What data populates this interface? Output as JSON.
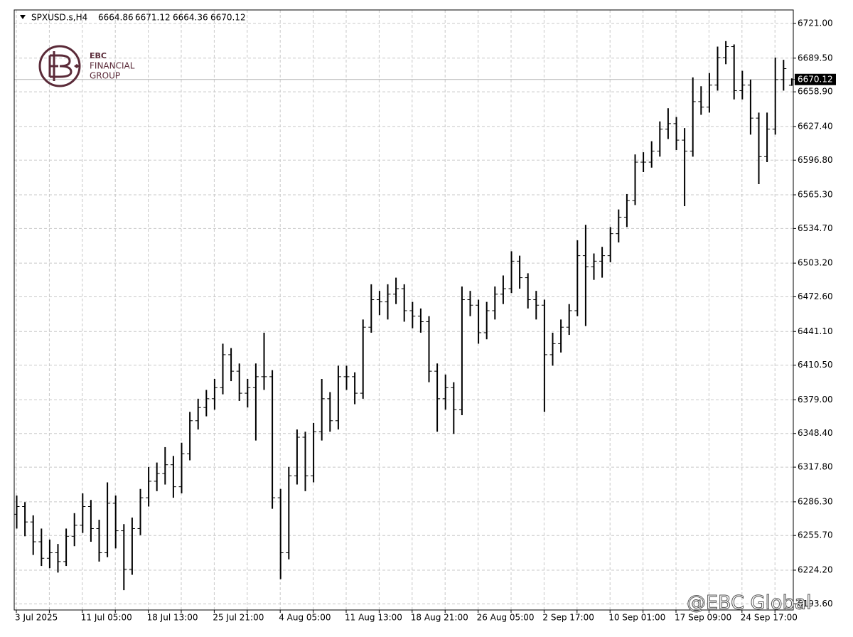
{
  "chart_data": {
    "type": "ohlc",
    "symbol": "SPXUSD.s,H4",
    "color": "#000000",
    "grid": true,
    "ylim": [
      6188.0,
      6733.3
    ],
    "yticks": [
      {
        "value": 6721.0,
        "label": "6721.00"
      },
      {
        "value": 6689.5,
        "label": "6689.50"
      },
      {
        "value": 6658.9,
        "label": "6658.90"
      },
      {
        "value": 6627.4,
        "label": "6627.40"
      },
      {
        "value": 6596.8,
        "label": "6596.80"
      },
      {
        "value": 6565.3,
        "label": "6565.30"
      },
      {
        "value": 6534.7,
        "label": "6534.70"
      },
      {
        "value": 6503.2,
        "label": "6503.20"
      },
      {
        "value": 6472.6,
        "label": "6472.60"
      },
      {
        "value": 6441.1,
        "label": "6441.10"
      },
      {
        "value": 6410.5,
        "label": "6410.50"
      },
      {
        "value": 6379.0,
        "label": "6379.00"
      },
      {
        "value": 6348.4,
        "label": "6348.40"
      },
      {
        "value": 6317.8,
        "label": "6317.80"
      },
      {
        "value": 6286.3,
        "label": "6286.30"
      },
      {
        "value": 6255.7,
        "label": "6255.70"
      },
      {
        "value": 6224.2,
        "label": "6224.20"
      },
      {
        "value": 6193.6,
        "label": "6193.60"
      }
    ],
    "categories": [
      "3 Jul 2025",
      null,
      null,
      null,
      null,
      null,
      null,
      null,
      "11 Jul 05:00",
      null,
      null,
      null,
      null,
      null,
      null,
      null,
      "18 Jul 13:00",
      null,
      null,
      null,
      null,
      null,
      null,
      null,
      "25 Jul 21:00",
      null,
      null,
      null,
      null,
      null,
      null,
      null,
      "4 Aug 05:00",
      null,
      null,
      null,
      null,
      null,
      null,
      null,
      "11 Aug 13:00",
      null,
      null,
      null,
      null,
      null,
      null,
      null,
      "18 Aug 21:00",
      null,
      null,
      null,
      null,
      null,
      null,
      null,
      "26 Aug 05:00",
      null,
      null,
      null,
      null,
      null,
      null,
      null,
      "2 Sep 17:00",
      null,
      null,
      null,
      null,
      null,
      null,
      null,
      "10 Sep 01:00",
      null,
      null,
      null,
      null,
      null,
      null,
      null,
      "17 Sep 09:00",
      null,
      null,
      null,
      null,
      null,
      null,
      null,
      "24 Sep 17:00",
      null,
      null,
      null,
      null,
      null,
      null
    ],
    "ohlc": [
      [
        6275,
        6292,
        6262,
        6282
      ],
      [
        6282,
        6286,
        6255,
        6268
      ],
      [
        6268,
        6274,
        6238,
        6250
      ],
      [
        6250,
        6262,
        6228,
        6235
      ],
      [
        6235,
        6252,
        6226,
        6240
      ],
      [
        6240,
        6248,
        6222,
        6232
      ],
      [
        6232,
        6262,
        6228,
        6255
      ],
      [
        6255,
        6276,
        6246,
        6265
      ],
      [
        6265,
        6294,
        6258,
        6282
      ],
      [
        6282,
        6288,
        6250,
        6262
      ],
      [
        6262,
        6270,
        6232,
        6240
      ],
      [
        6240,
        6304,
        6236,
        6285
      ],
      [
        6285,
        6292,
        6244,
        6260
      ],
      [
        6260,
        6266,
        6206,
        6225
      ],
      [
        6225,
        6272,
        6220,
        6262
      ],
      [
        6262,
        6298,
        6256,
        6290
      ],
      [
        6290,
        6318,
        6282,
        6305
      ],
      [
        6305,
        6322,
        6296,
        6312
      ],
      [
        6312,
        6336,
        6302,
        6320
      ],
      [
        6320,
        6328,
        6290,
        6300
      ],
      [
        6300,
        6340,
        6294,
        6330
      ],
      [
        6330,
        6368,
        6324,
        6360
      ],
      [
        6360,
        6380,
        6352,
        6372
      ],
      [
        6372,
        6388,
        6364,
        6380
      ],
      [
        6380,
        6398,
        6370,
        6390
      ],
      [
        6390,
        6430,
        6384,
        6420
      ],
      [
        6420,
        6426,
        6396,
        6405
      ],
      [
        6405,
        6412,
        6378,
        6385
      ],
      [
        6385,
        6398,
        6372,
        6390
      ],
      [
        6390,
        6412,
        6342,
        6400
      ],
      [
        6400,
        6440,
        6388,
        6400
      ],
      [
        6400,
        6406,
        6280,
        6290
      ],
      [
        6290,
        6298,
        6216,
        6240
      ],
      [
        6240,
        6318,
        6234,
        6310
      ],
      [
        6310,
        6352,
        6302,
        6345
      ],
      [
        6345,
        6350,
        6296,
        6310
      ],
      [
        6310,
        6358,
        6304,
        6350
      ],
      [
        6350,
        6398,
        6342,
        6380
      ],
      [
        6380,
        6386,
        6350,
        6360
      ],
      [
        6360,
        6410,
        6352,
        6400
      ],
      [
        6400,
        6410,
        6388,
        6400
      ],
      [
        6400,
        6404,
        6375,
        6385
      ],
      [
        6385,
        6452,
        6380,
        6445
      ],
      [
        6445,
        6484,
        6440,
        6470
      ],
      [
        6470,
        6478,
        6456,
        6468
      ],
      [
        6468,
        6484,
        6452,
        6475
      ],
      [
        6475,
        6490,
        6466,
        6480
      ],
      [
        6480,
        6484,
        6450,
        6460
      ],
      [
        6460,
        6468,
        6444,
        6455
      ],
      [
        6455,
        6462,
        6440,
        6450
      ],
      [
        6450,
        6455,
        6395,
        6405
      ],
      [
        6405,
        6412,
        6350,
        6380
      ],
      [
        6380,
        6402,
        6370,
        6390
      ],
      [
        6390,
        6395,
        6348,
        6370
      ],
      [
        6370,
        6482,
        6365,
        6470
      ],
      [
        6470,
        6478,
        6455,
        6465
      ],
      [
        6465,
        6470,
        6430,
        6440
      ],
      [
        6440,
        6468,
        6434,
        6460
      ],
      [
        6460,
        6482,
        6452,
        6475
      ],
      [
        6475,
        6492,
        6466,
        6480
      ],
      [
        6480,
        6514,
        6476,
        6505
      ],
      [
        6505,
        6510,
        6480,
        6490
      ],
      [
        6490,
        6494,
        6462,
        6470
      ],
      [
        6470,
        6478,
        6452,
        6465
      ],
      [
        6465,
        6470,
        6368,
        6420
      ],
      [
        6420,
        6440,
        6410,
        6430
      ],
      [
        6430,
        6452,
        6422,
        6445
      ],
      [
        6445,
        6466,
        6438,
        6460
      ],
      [
        6460,
        6524,
        6455,
        6510
      ],
      [
        6510,
        6538,
        6446,
        6500
      ],
      [
        6500,
        6512,
        6488,
        6505
      ],
      [
        6505,
        6518,
        6490,
        6510
      ],
      [
        6510,
        6536,
        6504,
        6530
      ],
      [
        6530,
        6552,
        6522,
        6545
      ],
      [
        6545,
        6566,
        6536,
        6560
      ],
      [
        6560,
        6602,
        6556,
        6595
      ],
      [
        6595,
        6604,
        6586,
        6595
      ],
      [
        6595,
        6614,
        6590,
        6605
      ],
      [
        6605,
        6632,
        6600,
        6625
      ],
      [
        6625,
        6644,
        6616,
        6630
      ],
      [
        6630,
        6636,
        6606,
        6615
      ],
      [
        6615,
        6626,
        6555,
        6605
      ],
      [
        6605,
        6672,
        6600,
        6650
      ],
      [
        6650,
        6664,
        6638,
        6645
      ],
      [
        6645,
        6676,
        6640,
        6665
      ],
      [
        6665,
        6700,
        6660,
        6690
      ],
      [
        6690,
        6705,
        6684,
        6700
      ],
      [
        6700,
        6702,
        6652,
        6660
      ],
      [
        6660,
        6678,
        6652,
        6665
      ],
      [
        6665,
        6670,
        6620,
        6635
      ],
      [
        6635,
        6640,
        6575,
        6600
      ],
      [
        6600,
        6640,
        6595,
        6625
      ],
      [
        6625,
        6690,
        6620,
        6670
      ],
      [
        6670,
        6688,
        6660,
        6680
      ],
      [
        6664.86,
        6671.12,
        6664.36,
        6670.12
      ]
    ],
    "logo_text": [
      "EBC",
      "FINANCIAL",
      "GROUP"
    ],
    "watermark": "@EBC Global"
  }
}
